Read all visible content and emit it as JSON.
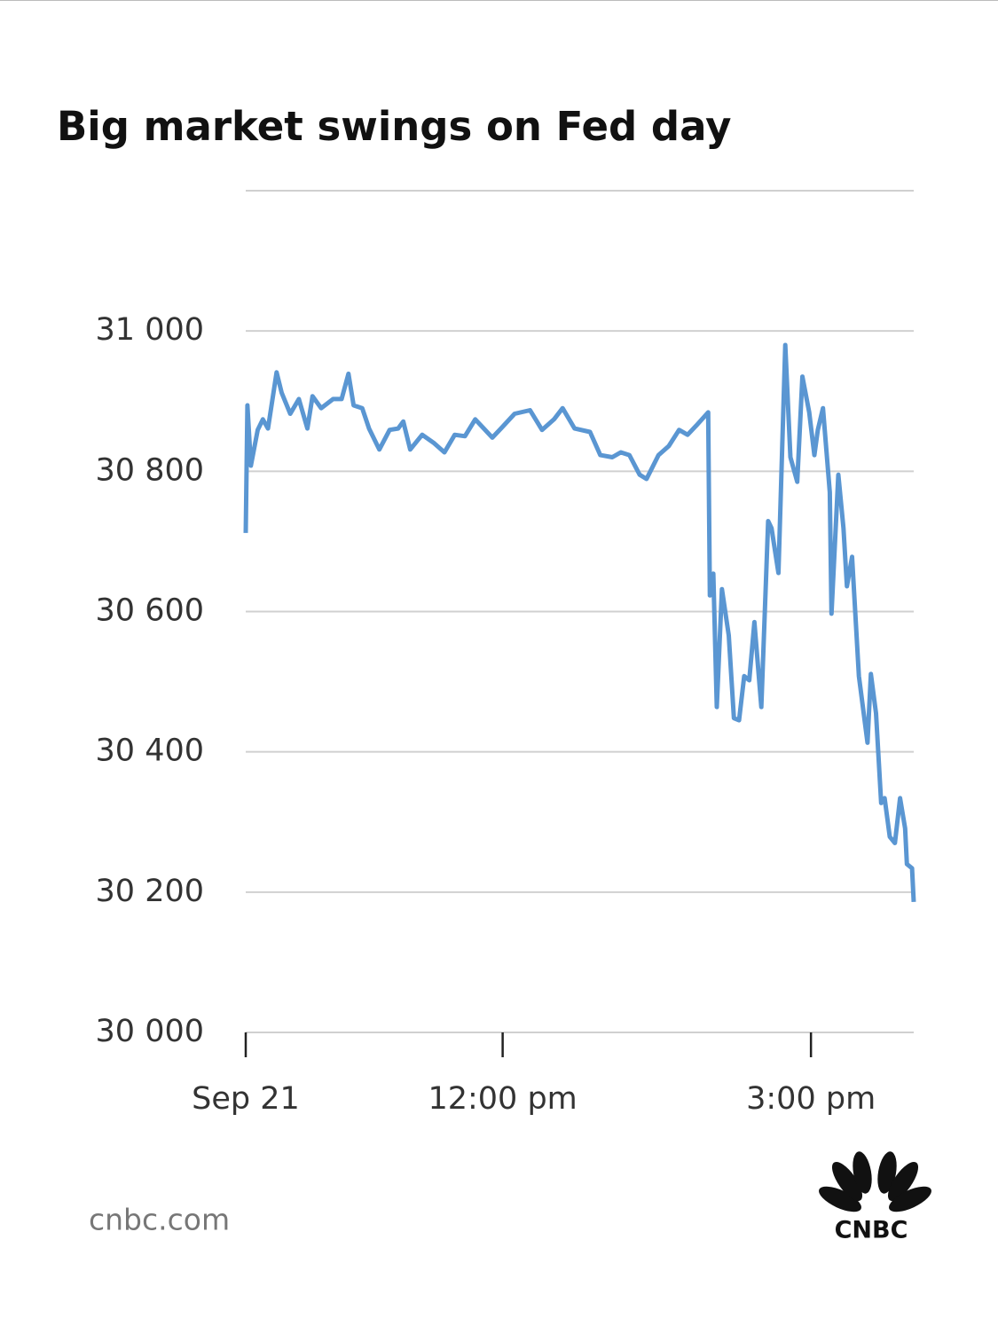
{
  "chart_data": {
    "type": "line",
    "title": "Big market swings on Fed day",
    "x": [
      570,
      571,
      573,
      577,
      580,
      583,
      588,
      591,
      596,
      601,
      606,
      609,
      614,
      621,
      626,
      630,
      633,
      638,
      642,
      648,
      654,
      659,
      662,
      666,
      673,
      680,
      686,
      692,
      698,
      704,
      709,
      714,
      719,
      727,
      736,
      743,
      750,
      755,
      762,
      771,
      777,
      784,
      789,
      794,
      800,
      804,
      811,
      817,
      823,
      828,
      833,
      840,
      841,
      843,
      845,
      848,
      852,
      855,
      858,
      861,
      864,
      867,
      871,
      875,
      877,
      881,
      885,
      888,
      892,
      895,
      899,
      902,
      904,
      907,
      911,
      912,
      916,
      919,
      921,
      924,
      928,
      933,
      935,
      938,
      941,
      943,
      946,
      949,
      952,
      955,
      956,
      959,
      960
    ],
    "values": [
      30712,
      30894,
      30808,
      30859,
      30874,
      30861,
      30941,
      30912,
      30882,
      30903,
      30861,
      30907,
      30890,
      30903,
      30903,
      30939,
      30894,
      30890,
      30861,
      30831,
      30859,
      30861,
      30871,
      30831,
      30852,
      30840,
      30827,
      30852,
      30850,
      30874,
      30861,
      30848,
      30861,
      30882,
      30887,
      30859,
      30874,
      30890,
      30861,
      30856,
      30823,
      30820,
      30827,
      30823,
      30795,
      30789,
      30823,
      30836,
      30859,
      30852,
      30865,
      30884,
      30623,
      30654,
      30464,
      30632,
      30566,
      30448,
      30445,
      30508,
      30502,
      30585,
      30464,
      30729,
      30719,
      30655,
      30980,
      30820,
      30785,
      30935,
      30884,
      30823,
      30859,
      30890,
      30770,
      30597,
      30795,
      30719,
      30636,
      30678,
      30508,
      30413,
      30511,
      30455,
      30327,
      30334,
      30279,
      30270,
      30334,
      30291,
      30240,
      30234,
      30186
    ],
    "color": "#5a96d2",
    "xlim": [
      570,
      960
    ],
    "xticks": [
      {
        "value": 570,
        "label": "Sep 21"
      },
      {
        "value": 720,
        "label": "12:00 pm"
      },
      {
        "value": 900,
        "label": "3:00 pm"
      }
    ],
    "ylim": [
      30000,
      31200
    ],
    "yticks": [
      {
        "value": 30000,
        "label": "30 000"
      },
      {
        "value": 30200,
        "label": "30 200"
      },
      {
        "value": 30400,
        "label": "30 400"
      },
      {
        "value": 30600,
        "label": "30 600"
      },
      {
        "value": 30800,
        "label": "30 800"
      },
      {
        "value": 31000,
        "label": "31 000"
      }
    ],
    "grid": true,
    "source": "cnbc.com",
    "logo": "CNBC"
  }
}
